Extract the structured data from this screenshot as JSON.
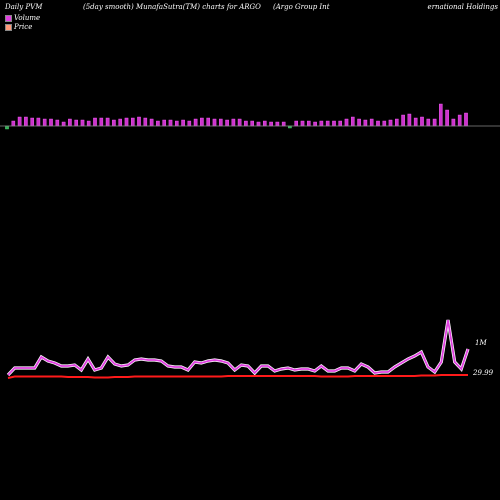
{
  "header": {
    "left": "Daily PVM",
    "middle": "(5day smooth) MunafaSutra(TM) charts for ARGO",
    "right_a": "(Argo Group Int",
    "right_b": "ernational Holdings"
  },
  "legend": {
    "volume_label": "Volume",
    "price_label": "Price",
    "volume_color": "#e040e0",
    "price_color": "#ff9a7a"
  },
  "colors": {
    "background": "#000000",
    "up_bar": "#cc33cc",
    "down_bar": "#33aa55",
    "baseline": "#888888",
    "volume_line": "#e040e0",
    "price_line": "#ff1a1a"
  },
  "chart_data": [
    {
      "type": "bar",
      "series": [
        {
          "values": [
            -3,
            5,
            9,
            9,
            8,
            8,
            7,
            7,
            6,
            4,
            7,
            6,
            6,
            5,
            8,
            8,
            8,
            6,
            7,
            8,
            8,
            9,
            8,
            7,
            5,
            6,
            6,
            5,
            6,
            5,
            7,
            8,
            8,
            7,
            7,
            6,
            7,
            7,
            5,
            5,
            4,
            5,
            4,
            4,
            4,
            -2,
            5,
            5,
            5,
            4,
            5,
            5,
            5,
            5,
            7,
            9,
            7,
            6,
            7,
            5,
            5,
            6,
            7,
            11,
            12,
            8,
            9,
            7,
            7,
            22,
            16,
            7,
            11,
            13
          ]
        }
      ]
    },
    {
      "type": "line",
      "y_labels": [
        "1M",
        "29.99"
      ],
      "series": [
        {
          "values": [
            0.05,
            0.12,
            0.12,
            0.12,
            0.12,
            0.23,
            0.19,
            0.17,
            0.14,
            0.14,
            0.15,
            0.1,
            0.21,
            0.1,
            0.12,
            0.23,
            0.16,
            0.14,
            0.15,
            0.2,
            0.21,
            0.2,
            0.2,
            0.19,
            0.14,
            0.13,
            0.13,
            0.1,
            0.18,
            0.17,
            0.19,
            0.2,
            0.19,
            0.17,
            0.1,
            0.15,
            0.14,
            0.07,
            0.14,
            0.14,
            0.09,
            0.11,
            0.12,
            0.1,
            0.11,
            0.11,
            0.09,
            0.14,
            0.09,
            0.09,
            0.12,
            0.12,
            0.09,
            0.16,
            0.13,
            0.07,
            0.08,
            0.08,
            0.13,
            0.17,
            0.21,
            0.24,
            0.28,
            0.13,
            0.08,
            0.18,
            0.6,
            0.18,
            0.11,
            0.31
          ]
        },
        {
          "values": [
            0.02,
            0.035,
            0.035,
            0.035,
            0.035,
            0.035,
            0.035,
            0.035,
            0.035,
            0.03,
            0.03,
            0.03,
            0.03,
            0.025,
            0.025,
            0.025,
            0.03,
            0.03,
            0.03,
            0.035,
            0.035,
            0.035,
            0.035,
            0.035,
            0.035,
            0.035,
            0.035,
            0.035,
            0.035,
            0.035,
            0.035,
            0.035,
            0.035,
            0.04,
            0.04,
            0.04,
            0.04,
            0.04,
            0.04,
            0.04,
            0.04,
            0.04,
            0.04,
            0.04,
            0.04,
            0.04,
            0.04,
            0.035,
            0.035,
            0.035,
            0.035,
            0.035,
            0.04,
            0.04,
            0.04,
            0.04,
            0.04,
            0.04,
            0.04,
            0.04,
            0.04,
            0.04,
            0.045,
            0.045,
            0.045,
            0.05,
            0.05,
            0.05,
            0.05,
            0.05
          ]
        }
      ]
    }
  ]
}
